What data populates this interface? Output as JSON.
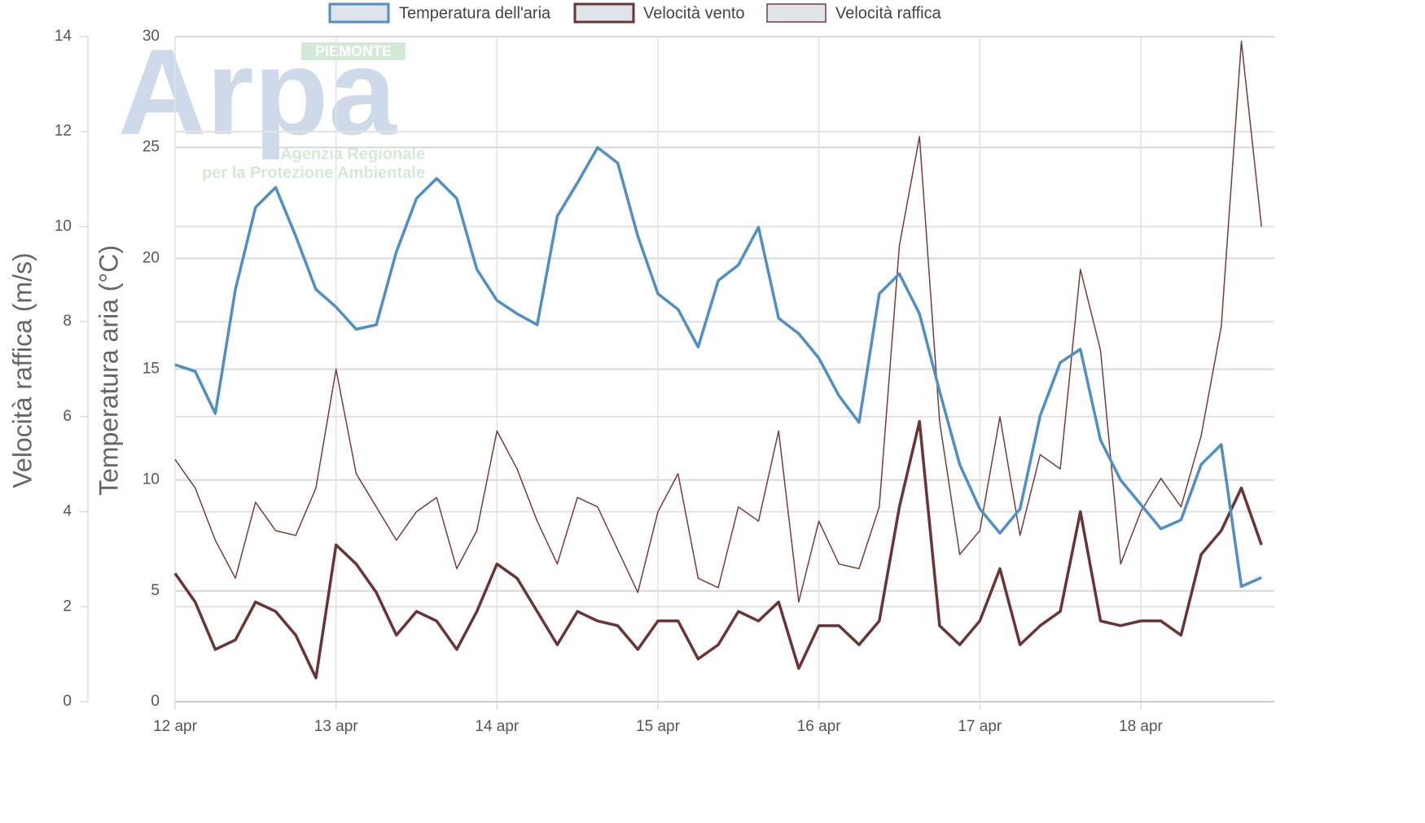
{
  "chart_data": {
    "type": "line",
    "watermark": {
      "logo": "Arpa",
      "region": "PIEMONTE",
      "line1": "Agenzia Regionale",
      "line2": "per la Protezione Ambientale"
    },
    "ylabel": "Temperatura aria (°C)",
    "y2label": "Velocità raffica (m/s)",
    "xlim": [
      0,
      6.83
    ],
    "xticks": [
      {
        "value": 0,
        "label": "12 apr"
      },
      {
        "value": 1,
        "label": "13 apr"
      },
      {
        "value": 2,
        "label": "14 apr"
      },
      {
        "value": 3,
        "label": "15 apr"
      },
      {
        "value": 4,
        "label": "16 apr"
      },
      {
        "value": 5,
        "label": "17 apr"
      },
      {
        "value": 6,
        "label": "18 apr"
      }
    ],
    "ylim": [
      0,
      30
    ],
    "yticks": [
      0,
      5,
      10,
      15,
      20,
      25,
      30
    ],
    "y2lim": [
      0,
      14
    ],
    "y2ticks": [
      0,
      2,
      4,
      6,
      8,
      10,
      12,
      14
    ],
    "grid": true,
    "legend": "top",
    "x": [
      0,
      0.125,
      0.25,
      0.375,
      0.5,
      0.625,
      0.75,
      0.875,
      1,
      1.125,
      1.25,
      1.375,
      1.5,
      1.625,
      1.75,
      1.875,
      2,
      2.125,
      2.25,
      2.375,
      2.5,
      2.625,
      2.75,
      2.875,
      3,
      3.125,
      3.25,
      3.375,
      3.5,
      3.625,
      3.75,
      3.875,
      4,
      4.125,
      4.25,
      4.375,
      4.5,
      4.625,
      4.75,
      4.875,
      5,
      5.125,
      5.25,
      5.375,
      5.5,
      5.625,
      5.75,
      5.875,
      6,
      6.125,
      6.25,
      6.375,
      6.5,
      6.625,
      6.75
    ],
    "series": [
      {
        "name": "Temperatura dell'aria",
        "color": "#4f8fc6",
        "values": [
          15.2,
          14.9,
          13.0,
          18.6,
          22.3,
          23.2,
          21.0,
          18.6,
          17.8,
          16.8,
          17.0,
          20.3,
          22.7,
          23.6,
          22.7,
          19.5,
          18.1,
          17.5,
          17.0,
          21.9,
          23.4,
          25.0,
          24.3,
          21.0,
          18.4,
          17.7,
          16.0,
          19.0,
          19.7,
          21.4,
          17.3,
          16.6,
          15.5,
          13.8,
          12.6,
          18.4,
          19.3,
          17.5,
          14.0,
          10.7,
          8.7,
          7.6,
          8.7,
          12.9,
          15.3,
          15.9,
          11.8,
          10.0,
          8.9,
          7.8,
          8.2,
          10.7,
          11.6,
          5.2,
          5.6
        ]
      },
      {
        "name": "Velocità vento",
        "color": "#6b3434",
        "axis": "y2",
        "values": [
          2.7,
          2.1,
          1.1,
          1.3,
          2.1,
          1.9,
          1.4,
          0.5,
          3.3,
          2.9,
          2.3,
          1.4,
          1.9,
          1.7,
          1.1,
          1.9,
          2.9,
          2.6,
          1.9,
          1.2,
          1.9,
          1.7,
          1.6,
          1.1,
          1.7,
          1.7,
          0.9,
          1.2,
          1.9,
          1.7,
          2.1,
          0.7,
          1.6,
          1.6,
          1.2,
          1.7,
          4.1,
          5.9,
          1.6,
          1.2,
          1.7,
          2.8,
          1.2,
          1.6,
          1.9,
          4.0,
          1.7,
          1.6,
          1.7,
          1.7,
          1.4,
          3.1,
          3.6,
          4.5,
          3.3
        ]
      },
      {
        "name": "Velocità raffica",
        "color": "#7a3b3b",
        "axis": "y2",
        "values": [
          5.1,
          4.5,
          3.4,
          2.6,
          4.2,
          3.6,
          3.5,
          4.5,
          7.0,
          4.8,
          4.1,
          3.4,
          4.0,
          4.3,
          2.8,
          3.6,
          5.7,
          4.9,
          3.8,
          2.9,
          4.3,
          4.1,
          3.2,
          2.3,
          4.0,
          4.8,
          2.6,
          2.4,
          4.1,
          3.8,
          5.7,
          2.1,
          3.8,
          2.9,
          2.8,
          4.1,
          9.6,
          11.9,
          5.9,
          3.1,
          3.6,
          6.0,
          3.5,
          5.2,
          4.9,
          9.1,
          7.4,
          2.9,
          4.0,
          4.7,
          4.1,
          5.6,
          7.9,
          13.9,
          10.0
        ]
      }
    ]
  }
}
